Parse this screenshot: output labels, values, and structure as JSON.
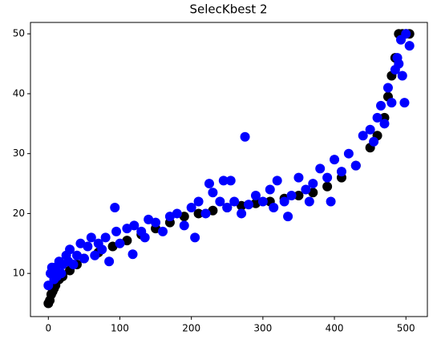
{
  "chart_data": {
    "type": "scatter",
    "title": "SelecKbest 2",
    "xlim": [
      -25,
      530
    ],
    "ylim": [
      2.8,
      51.9
    ],
    "xticks": [
      0,
      100,
      200,
      300,
      400,
      500
    ],
    "yticks": [
      10,
      20,
      30,
      40,
      50
    ],
    "series": [
      {
        "color": "#000000",
        "x": [
          0,
          2,
          4,
          6,
          8,
          10,
          15,
          20,
          30,
          40,
          50,
          70,
          90,
          110,
          130,
          150,
          170,
          190,
          210,
          230,
          250,
          270,
          290,
          310,
          330,
          350,
          370,
          390,
          410,
          430,
          450,
          460,
          470,
          475,
          480,
          485,
          490,
          495,
          500,
          505
        ],
        "values": [
          5,
          5.5,
          6.5,
          7,
          7.5,
          8,
          9,
          9.5,
          10.5,
          11.5,
          12.5,
          13.5,
          14.5,
          15.5,
          16.5,
          17.5,
          18.5,
          19.5,
          20,
          20.5,
          21,
          21.3,
          21.7,
          22,
          22.5,
          23,
          23.5,
          24.5,
          26,
          28,
          31,
          33,
          36,
          39.5,
          43,
          46,
          50,
          50,
          50,
          50
        ]
      },
      {
        "color": "#0000ff",
        "x": [
          0,
          3,
          5,
          8,
          10,
          12,
          15,
          18,
          20,
          25,
          28,
          30,
          35,
          40,
          45,
          50,
          55,
          60,
          65,
          70,
          75,
          80,
          85,
          93,
          95,
          100,
          110,
          118,
          120,
          130,
          135,
          140,
          150,
          160,
          170,
          180,
          190,
          200,
          205,
          210,
          220,
          225,
          230,
          240,
          245,
          250,
          255,
          260,
          270,
          275,
          280,
          290,
          300,
          310,
          315,
          320,
          330,
          335,
          340,
          350,
          360,
          365,
          370,
          380,
          390,
          395,
          400,
          410,
          420,
          430,
          440,
          450,
          455,
          460,
          465,
          470,
          475,
          480,
          485,
          488,
          490,
          493,
          495,
          498,
          500,
          505
        ],
        "values": [
          8,
          10,
          11,
          9,
          11,
          9.5,
          12,
          10,
          11.5,
          13,
          12,
          14,
          11.5,
          13,
          15,
          12.5,
          14.5,
          16,
          13,
          15,
          14,
          16,
          12,
          21,
          17,
          15,
          17.5,
          13.2,
          18,
          17,
          16,
          19,
          18.5,
          17,
          19.5,
          20,
          18,
          21,
          16,
          22,
          20,
          25,
          23.5,
          22,
          25.5,
          21,
          25.5,
          22,
          20,
          32.8,
          21.5,
          23,
          22,
          24,
          21,
          25.5,
          22,
          19.5,
          23,
          26,
          24,
          22,
          25,
          27.5,
          26,
          22,
          29,
          27,
          30,
          28,
          33,
          34,
          32,
          36,
          38,
          35,
          41,
          38.5,
          44,
          46,
          45,
          49,
          43,
          38.5,
          50,
          48
        ]
      }
    ]
  }
}
